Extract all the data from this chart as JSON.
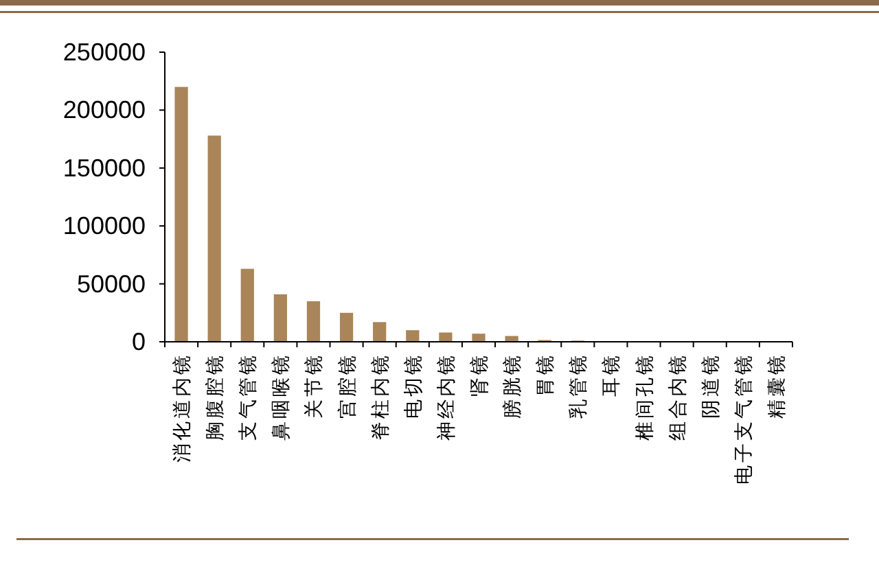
{
  "chart_data": {
    "type": "bar",
    "categories": [
      "消化道内镜",
      "胸腹腔镜",
      "支气管镜",
      "鼻咽喉镜",
      "关节镜",
      "宫腔镜",
      "脊柱内镜",
      "电切镜",
      "神经内镜",
      "肾镜",
      "膀胱镜",
      "胃镜",
      "乳管镜",
      "耳镜",
      "椎间孔镜",
      "组合内镜",
      "阴道镜",
      "电子支气管镜",
      "精囊镜"
    ],
    "values": [
      220000,
      178000,
      63000,
      41000,
      35000,
      25000,
      17000,
      10000,
      8000,
      7000,
      5000,
      1500,
      1000,
      0,
      0,
      0,
      0,
      0,
      0
    ],
    "color": "#a98559",
    "ylim": [
      0,
      250000
    ],
    "yticks": [
      0,
      50000,
      100000,
      150000,
      200000,
      250000
    ],
    "grid": false
  }
}
